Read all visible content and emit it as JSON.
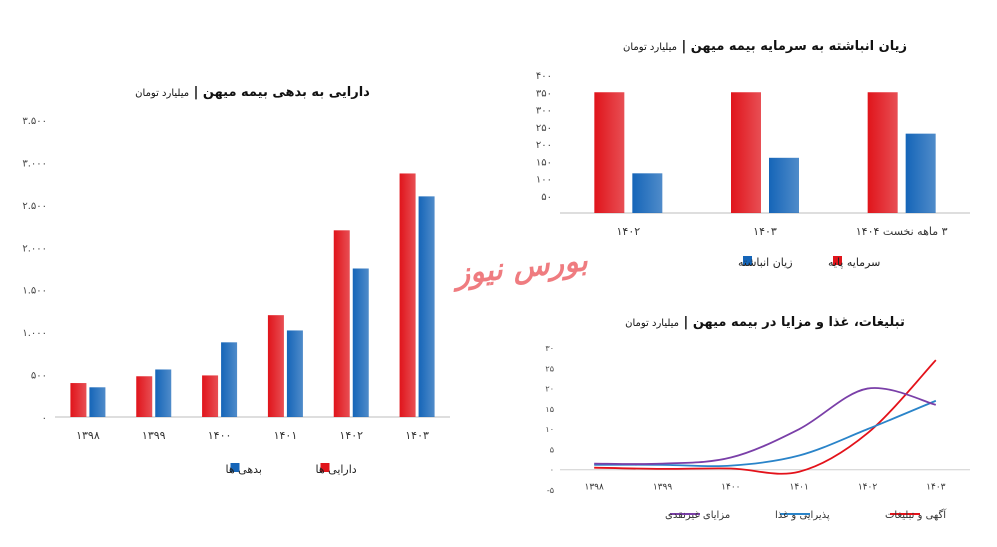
{
  "watermark": "بورس نیوز",
  "chart_data": [
    {
      "id": "assets-liabilities",
      "type": "bar",
      "title": "دارایی به بدهی بیمه میهن",
      "unit": "میلیارد تومان",
      "categories": [
        "۱۳۹۸",
        "۱۳۹۹",
        "۱۴۰۰",
        "۱۴۰۱",
        "۱۴۰۲",
        "۱۴۰۳"
      ],
      "series": [
        {
          "name": "دارایی ها",
          "color": "#e0141b",
          "values": [
            400,
            480,
            490,
            1200,
            2200,
            2870
          ]
        },
        {
          "name": "بدهی ها",
          "color": "#1565b8",
          "values": [
            350,
            560,
            880,
            1020,
            1750,
            2600
          ]
        }
      ],
      "ylim": [
        0,
        3500
      ],
      "yticks": [
        0,
        500,
        1000,
        1500,
        2000,
        2500,
        3000,
        3500
      ],
      "ytick_labels": [
        "۰",
        "۵۰۰",
        "۱.۰۰۰",
        "۱.۵۰۰",
        "۲.۰۰۰",
        "۲.۵۰۰",
        "۳.۰۰۰",
        "۳.۵۰۰"
      ],
      "legend": "bottom",
      "grid": false
    },
    {
      "id": "accumulated-loss",
      "type": "bar",
      "title": "زیان انباشته به سرمایه بیمه میهن",
      "unit": "میلیارد تومان",
      "categories": [
        "۱۴۰۲",
        "۱۴۰۳",
        "۳ ماهه نخست ۱۴۰۴"
      ],
      "series": [
        {
          "name": "سرمایه پایه",
          "color": "#e0141b",
          "values": [
            350,
            350,
            350
          ]
        },
        {
          "name": "زیان انباشته",
          "color": "#1565b8",
          "values": [
            115,
            160,
            230
          ]
        }
      ],
      "ylim": [
        0,
        400
      ],
      "yticks": [
        0,
        50,
        100,
        150,
        200,
        250,
        300,
        350,
        400
      ],
      "ytick_labels": [
        "",
        "۵۰",
        "۱۰۰",
        "۱۵۰",
        "۲۰۰",
        "۲۵۰",
        "۳۰۰",
        "۳۵۰",
        "۴۰۰"
      ],
      "legend": "bottom",
      "grid": false
    },
    {
      "id": "advertising-benefits",
      "type": "line",
      "title": "تبلیغات، غذا و مزایا در بیمه میهن",
      "unit": "میلیارد تومان",
      "categories": [
        "۱۳۹۸",
        "۱۳۹۹",
        "۱۴۰۰",
        "۱۴۰۱",
        "۱۴۰۲",
        "۱۴۰۳"
      ],
      "series": [
        {
          "name": "آگهی و تبلیغات",
          "color": "#e3121a",
          "values": [
            0.5,
            0.2,
            0.3,
            -0.5,
            9,
            27
          ]
        },
        {
          "name": "پذیرایی و غذا",
          "color": "#2a84c9",
          "values": [
            1.2,
            1.2,
            1.0,
            3.5,
            10,
            17
          ]
        },
        {
          "name": "مزایای غیرنقدی",
          "color": "#7a3fa8",
          "values": [
            1.5,
            1.5,
            3,
            10,
            20,
            16
          ]
        }
      ],
      "ylim": [
        -5,
        30
      ],
      "yticks": [
        -5,
        0,
        5,
        10,
        15,
        20,
        25,
        30
      ],
      "ytick_labels": [
        "-۵",
        "۰",
        "۵",
        "۱۰",
        "۱۵",
        "۲۰",
        "۲۵",
        "۳۰"
      ],
      "legend": "bottom",
      "grid": false
    }
  ]
}
